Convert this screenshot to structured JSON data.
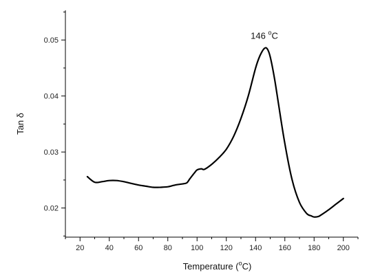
{
  "chart_data": {
    "type": "line",
    "title": "",
    "xlabel": "Temperature (°C)",
    "xlabel_parts": {
      "pre": "Temperature (",
      "deg": "o",
      "post": "C)"
    },
    "ylabel": "Tan δ",
    "xlim": [
      10,
      210
    ],
    "ylim": [
      0.0148,
      0.0553
    ],
    "x_ticks": [
      20,
      40,
      60,
      80,
      100,
      120,
      140,
      160,
      180,
      200
    ],
    "x_tick_labels": [
      "20",
      "40",
      "60",
      "80",
      "100",
      "120",
      "140",
      "160",
      "180",
      "200"
    ],
    "y_ticks": [
      0.02,
      0.03,
      0.04,
      0.05
    ],
    "y_tick_labels": [
      "0.02",
      "0.03",
      "0.04",
      "0.05"
    ],
    "grid": false,
    "legend": "none",
    "line_color": "#000000",
    "annotations": [
      {
        "text": "146 °C",
        "parts": {
          "pre": "146 ",
          "deg": "o",
          "post": "C"
        },
        "x": 146,
        "y": 0.0502
      }
    ],
    "series": [
      {
        "x": [
          25,
          30,
          35,
          40,
          45,
          50,
          55,
          60,
          65,
          70,
          75,
          80,
          85,
          90,
          93,
          95,
          98,
          100,
          103,
          105,
          110,
          115,
          120,
          125,
          130,
          135,
          140,
          143,
          146,
          148,
          150,
          153,
          156,
          160,
          165,
          170,
          175,
          178,
          180,
          183,
          185,
          190,
          195,
          200
        ],
        "y": [
          0.0256,
          0.0246,
          0.0247,
          0.0249,
          0.0249,
          0.0247,
          0.0244,
          0.0241,
          0.0239,
          0.0237,
          0.0237,
          0.0238,
          0.0241,
          0.0243,
          0.0245,
          0.0252,
          0.0262,
          0.0268,
          0.027,
          0.0269,
          0.0278,
          0.029,
          0.0305,
          0.0328,
          0.036,
          0.04,
          0.045,
          0.0472,
          0.0485,
          0.0484,
          0.047,
          0.043,
          0.038,
          0.0315,
          0.025,
          0.021,
          0.019,
          0.0186,
          0.0184,
          0.0185,
          0.0188,
          0.0197,
          0.0207,
          0.0217
        ]
      }
    ]
  }
}
